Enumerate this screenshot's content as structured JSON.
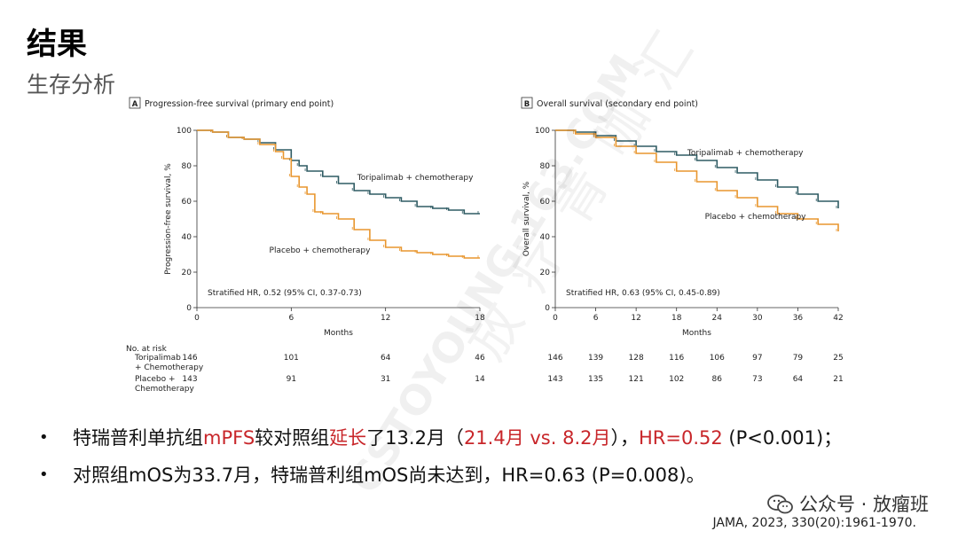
{
  "header": {
    "title": "结果",
    "subtitle": "生存分析"
  },
  "watermarks": {
    "diagonal": "CSTOYOUNG-163.COM",
    "vertical": "放疗青咖汇"
  },
  "chart_data": [
    {
      "type": "line",
      "panel_letter": "A",
      "title": "Progression-free survival (primary end point)",
      "xlabel": "Months",
      "ylabel": "Progression-free survival, %",
      "xlim": [
        0,
        18
      ],
      "ylim": [
        0,
        100
      ],
      "xticks": [
        0,
        6,
        12,
        18
      ],
      "yticks": [
        0,
        20,
        40,
        60,
        80,
        100
      ],
      "annotation": "Stratified HR, 0.52 (95% CI, 0.37-0.73)",
      "series": [
        {
          "name": "Toripalimab + chemotherapy",
          "color": "#2f5b63",
          "points": [
            [
              0,
              100
            ],
            [
              1,
              99
            ],
            [
              2,
              96
            ],
            [
              3,
              95
            ],
            [
              4,
              93
            ],
            [
              5,
              89
            ],
            [
              6,
              83
            ],
            [
              6.5,
              80
            ],
            [
              7,
              77
            ],
            [
              8,
              74
            ],
            [
              9,
              70
            ],
            [
              10,
              66
            ],
            [
              11,
              64
            ],
            [
              12,
              62
            ],
            [
              13,
              60
            ],
            [
              14,
              57
            ],
            [
              15,
              56
            ],
            [
              16,
              55
            ],
            [
              17,
              53
            ],
            [
              18,
              53
            ]
          ]
        },
        {
          "name": "Placebo + chemotherapy",
          "color": "#e8962e",
          "points": [
            [
              0,
              100
            ],
            [
              1,
              99
            ],
            [
              2,
              96
            ],
            [
              3,
              95
            ],
            [
              4,
              92
            ],
            [
              5,
              88
            ],
            [
              5.5,
              84
            ],
            [
              6,
              74
            ],
            [
              6.5,
              68
            ],
            [
              7,
              64
            ],
            [
              7.5,
              54
            ],
            [
              8,
              53
            ],
            [
              9,
              50
            ],
            [
              10,
              44
            ],
            [
              11,
              38
            ],
            [
              12,
              34
            ],
            [
              13,
              32
            ],
            [
              14,
              31
            ],
            [
              15,
              30
            ],
            [
              16,
              29
            ],
            [
              17,
              28
            ],
            [
              18,
              28
            ]
          ]
        }
      ],
      "label_positions_data": [
        {
          "text": "Toripalimab + chemotherapy",
          "x": 10.2,
          "y": 72
        },
        {
          "text": "Placebo + chemotherapy",
          "x": 4.6,
          "y": 31
        }
      ],
      "at_risk": {
        "header": "No. at risk",
        "rows": [
          {
            "name": "Toripalimab",
            "name2": "+ Chemotherapy",
            "values": [
              146,
              101,
              64,
              46
            ]
          },
          {
            "name": "Placebo +",
            "name2": "Chemotherapy",
            "values": [
              143,
              91,
              31,
              14
            ]
          }
        ]
      }
    },
    {
      "type": "line",
      "panel_letter": "B",
      "title": "Overall survival (secondary end point)",
      "xlabel": "Months",
      "ylabel": "Overall survival, %",
      "xlim": [
        0,
        42
      ],
      "ylim": [
        0,
        100
      ],
      "xticks": [
        0,
        6,
        12,
        18,
        24,
        30,
        36,
        42
      ],
      "yticks": [
        0,
        20,
        40,
        60,
        80,
        100
      ],
      "annotation": "Stratified HR, 0.63 (95% CI, 0.45-0.89)",
      "series": [
        {
          "name": "Toripalimab + chemotherapy",
          "color": "#2f5b63",
          "points": [
            [
              0,
              100
            ],
            [
              3,
              99
            ],
            [
              6,
              97
            ],
            [
              9,
              94
            ],
            [
              12,
              91
            ],
            [
              15,
              88
            ],
            [
              18,
              86
            ],
            [
              21,
              83
            ],
            [
              24,
              79
            ],
            [
              27,
              76
            ],
            [
              30,
              72
            ],
            [
              33,
              68
            ],
            [
              36,
              64
            ],
            [
              39,
              60
            ],
            [
              42,
              56
            ]
          ]
        },
        {
          "name": "Placebo + chemotherapy",
          "color": "#e8962e",
          "points": [
            [
              0,
              100
            ],
            [
              3,
              98
            ],
            [
              6,
              96
            ],
            [
              9,
              91
            ],
            [
              12,
              87
            ],
            [
              15,
              82
            ],
            [
              18,
              77
            ],
            [
              21,
              71
            ],
            [
              24,
              66
            ],
            [
              27,
              62
            ],
            [
              30,
              57
            ],
            [
              33,
              53
            ],
            [
              36,
              50
            ],
            [
              39,
              47
            ],
            [
              42,
              43
            ]
          ]
        }
      ],
      "label_positions_data": [
        {
          "text": "Toripalimab + chemotherapy",
          "x": 19.6,
          "y": 86
        },
        {
          "text": "Placebo + chemotherapy",
          "x": 22.2,
          "y": 50
        }
      ],
      "at_risk": {
        "rows": [
          {
            "values": [
              146,
              139,
              128,
              116,
              106,
              97,
              79,
              25
            ]
          },
          {
            "values": [
              143,
              135,
              121,
              102,
              86,
              73,
              64,
              21
            ]
          }
        ]
      }
    }
  ],
  "bullets": [
    {
      "parts": [
        {
          "text": "特瑞普利单抗组",
          "red": false
        },
        {
          "text": "mPFS",
          "red": true
        },
        {
          "text": "较对照组",
          "red": false
        },
        {
          "text": "延长",
          "red": true
        },
        {
          "text": "了13.2月（",
          "red": false
        },
        {
          "text": "21.4月 vs. 8.2月",
          "red": true
        },
        {
          "text": "），",
          "red": false
        },
        {
          "text": "HR=0.52",
          "red": true
        },
        {
          "text": " (P<0.001)；",
          "red": false
        }
      ]
    },
    {
      "parts": [
        {
          "text": "对照组mOS为33.7月，特瑞普利组mOS尚未达到，HR=0.63 (P=0.008)。",
          "red": false
        }
      ]
    }
  ],
  "footer": {
    "wechat": "公众号 · 放瘤班",
    "citation": "JAMA, 2023, 330(20):1961-1970."
  }
}
